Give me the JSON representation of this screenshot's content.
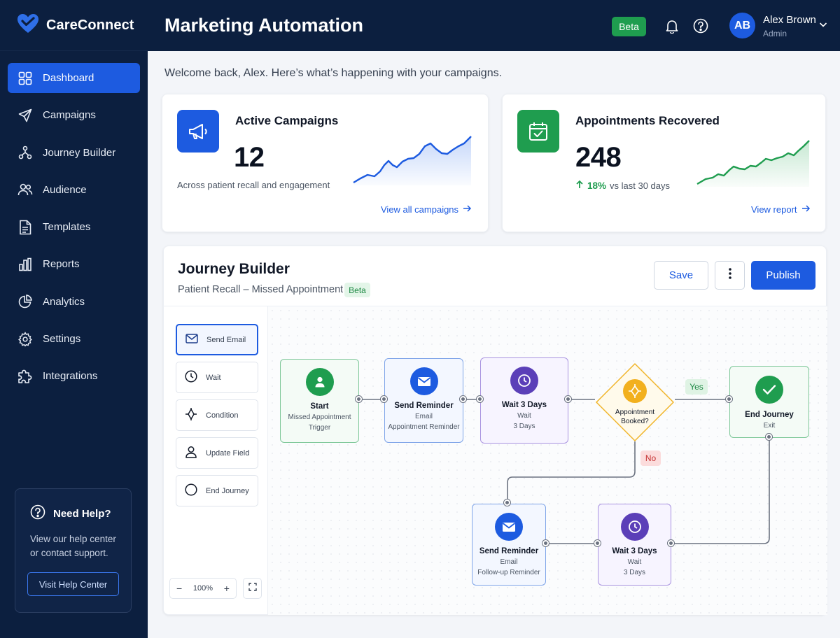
{
  "app": {
    "brand": "CareConnect"
  },
  "header": {
    "title": "Marketing Automation",
    "badge": "Beta",
    "user": {
      "initials": "AB",
      "name": "Alex Brown",
      "role": "Admin"
    }
  },
  "sidebar": {
    "items": [
      {
        "label": "Dashboard",
        "icon": "grid-icon",
        "active": true
      },
      {
        "label": "Campaigns",
        "icon": "send-icon"
      },
      {
        "label": "Journey Builder",
        "icon": "flow-icon"
      },
      {
        "label": "Audience",
        "icon": "users-icon"
      },
      {
        "label": "Templates",
        "icon": "document-icon"
      },
      {
        "label": "Reports",
        "icon": "bar-chart-icon"
      },
      {
        "label": "Analytics",
        "icon": "pie-chart-icon"
      },
      {
        "label": "Settings",
        "icon": "gear-icon"
      },
      {
        "label": "Integrations",
        "icon": "puzzle-icon"
      }
    ],
    "help": {
      "title": "Need Help?",
      "text": "View our help center or contact support.",
      "button": "Visit Help Center"
    }
  },
  "welcome": "Welcome back, Alex. Here’s what’s happening with your campaigns.",
  "stats": {
    "campaigns": {
      "title": "Active Campaigns",
      "value": "12",
      "subtitle": "Across patient recall and engagement",
      "link": "View all campaigns",
      "color": "#1d5be0"
    },
    "appointments": {
      "title": "Appointments Recovered",
      "value": "248",
      "change": "18%",
      "change_suffix": "vs last 30 days",
      "link": "View report",
      "color": "#1f9d4f"
    }
  },
  "journey": {
    "title": "Journey Builder",
    "subtitle": "Patient Recall – Missed Appointment",
    "badge": "Beta",
    "save": "Save",
    "publish": "Publish",
    "zoom": "100%",
    "palette": [
      {
        "label": "Send Email",
        "icon": "mail-icon"
      },
      {
        "label": "Wait",
        "icon": "clock-icon"
      },
      {
        "label": "Condition",
        "icon": "condition-icon"
      },
      {
        "label": "Update Field",
        "icon": "user-icon"
      },
      {
        "label": "End Journey",
        "icon": "circle-icon"
      }
    ],
    "nodes": {
      "start": {
        "title": "Start",
        "l2": "Missed Appointment",
        "l3": "Trigger"
      },
      "send1": {
        "title": "Send Reminder",
        "l2": "Email",
        "l3": "Appointment Reminder"
      },
      "wait1": {
        "title": "Wait 3 Days",
        "l2": "Wait",
        "l3": "3 Days"
      },
      "condition": {
        "title": "Appointment Booked?"
      },
      "end": {
        "title": "End Journey",
        "l2": "Exit"
      },
      "send2": {
        "title": "Send Reminder",
        "l2": "Email",
        "l3": "Follow-up Reminder"
      },
      "wait2": {
        "title": "Wait 3 Days",
        "l2": "Wait",
        "l3": "3 Days"
      }
    },
    "yes": "Yes",
    "no": "No"
  }
}
